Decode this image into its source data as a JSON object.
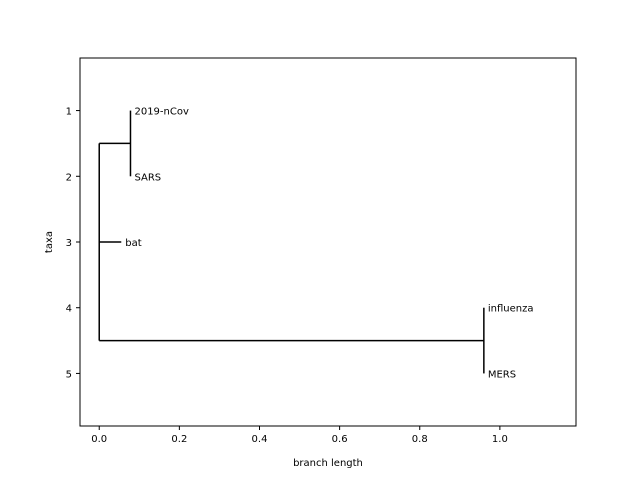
{
  "chart_data": {
    "type": "tree",
    "title": "",
    "xlabel": "branch length",
    "ylabel": "taxa",
    "xlim": [
      -0.048,
      1.19
    ],
    "ylim": [
      5.8,
      0.2
    ],
    "xticks": [
      0.0,
      0.2,
      0.4,
      0.6,
      0.8,
      1.0
    ],
    "xtick_labels": [
      "0.0",
      "0.2",
      "0.4",
      "0.6",
      "0.8",
      "1.0"
    ],
    "yticks": [
      1,
      2,
      3,
      4,
      5
    ],
    "ytick_labels": [
      "1",
      "2",
      "3",
      "4",
      "5"
    ],
    "grid": false,
    "colors": {
      "line": "#000000"
    },
    "taxa": [
      {
        "name": "2019-nCov",
        "x": 0.078,
        "y": 1
      },
      {
        "name": "SARS",
        "x": 0.078,
        "y": 2
      },
      {
        "name": "bat",
        "x": 0.055,
        "y": 3
      },
      {
        "name": "influenza",
        "x": 0.96,
        "y": 4
      },
      {
        "name": "MERS",
        "x": 0.96,
        "y": 5
      }
    ],
    "internal_nodes": [
      {
        "x": 0.0,
        "y_min": 1.5,
        "y_max": 4.5
      },
      {
        "x": 0.078,
        "y_min": 1,
        "y_max": 2
      },
      {
        "x": 0.96,
        "y_min": 4,
        "y_max": 5
      }
    ],
    "branches": [
      {
        "x": [
          0.0,
          0.078
        ],
        "y": 1.5
      },
      {
        "x": [
          0.0,
          0.055
        ],
        "y": 3
      },
      {
        "x": [
          0.0,
          0.96
        ],
        "y": 4.5
      }
    ]
  }
}
